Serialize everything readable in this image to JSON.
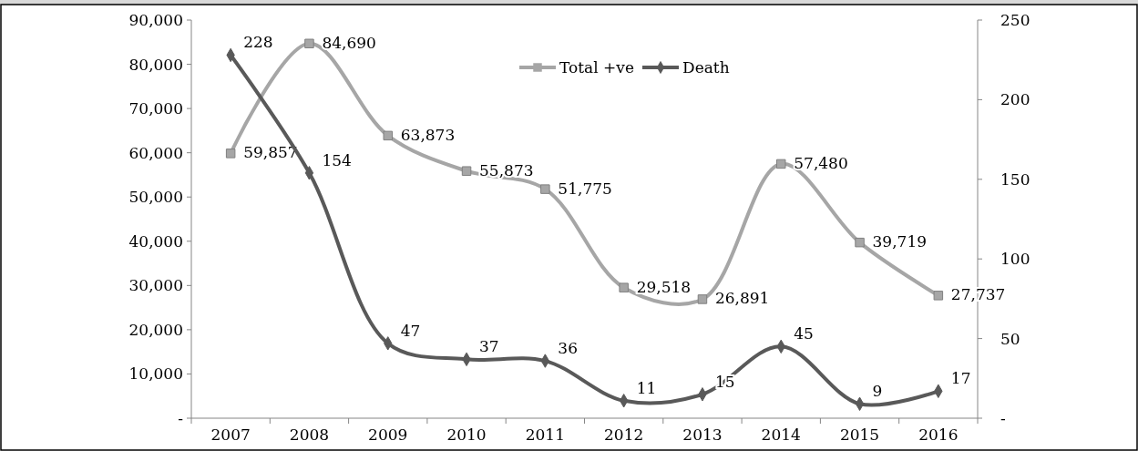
{
  "chart_data": {
    "type": "line",
    "categories": [
      "2007",
      "2008",
      "2009",
      "2010",
      "2011",
      "2012",
      "2013",
      "2014",
      "2015",
      "2016"
    ],
    "series": [
      {
        "name": "Total +ve",
        "color": "#a6a6a6",
        "marker": "square",
        "values": [
          59857,
          84690,
          63873,
          55873,
          51775,
          29518,
          26891,
          57480,
          39719,
          27737
        ],
        "value_labels": [
          "59,857",
          "84,690",
          "63,873",
          "55,873",
          "51,775",
          "29,518",
          "26,891",
          "57,480",
          "39,719",
          "27,737"
        ]
      },
      {
        "name": "Death",
        "color": "#595959",
        "marker": "diamond",
        "axis": "y2",
        "values": [
          228,
          154,
          47,
          37,
          36,
          11,
          15,
          45,
          9,
          17
        ],
        "value_labels": [
          "228",
          "154",
          "47",
          "37",
          "36",
          "11",
          "15",
          "45",
          "9",
          "17"
        ]
      }
    ],
    "ylim": [
      0,
      90000
    ],
    "yticks": [
      {
        "value": 0,
        "label": "-"
      },
      {
        "value": 10000,
        "label": "10,000"
      },
      {
        "value": 20000,
        "label": "20,000"
      },
      {
        "value": 30000,
        "label": "30,000"
      },
      {
        "value": 40000,
        "label": "40,000"
      },
      {
        "value": 50000,
        "label": "50,000"
      },
      {
        "value": 60000,
        "label": "60,000"
      },
      {
        "value": 70000,
        "label": "70,000"
      },
      {
        "value": 80000,
        "label": "80,000"
      },
      {
        "value": 90000,
        "label": "90,000"
      }
    ],
    "y2lim": [
      0,
      250
    ],
    "y2ticks": [
      {
        "value": 0,
        "label": "-"
      },
      50,
      100,
      150,
      200,
      250
    ],
    "legend": "top",
    "grid": false
  }
}
